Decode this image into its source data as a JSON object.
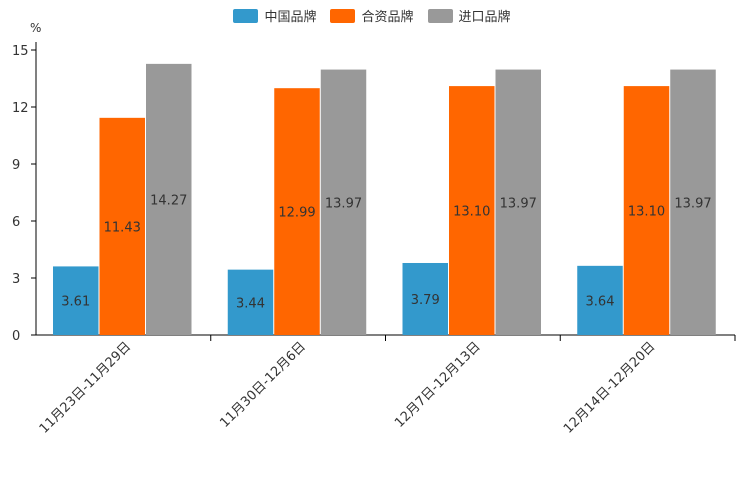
{
  "chart_data": {
    "type": "bar",
    "title": "",
    "ylabel": "%",
    "xlabel": "",
    "ylim": [
      0,
      15
    ],
    "yticks": [
      0,
      3,
      6,
      9,
      12,
      15
    ],
    "categories": [
      "11月23日-11月29日",
      "11月30日-12月6日",
      "12月7日-12月13日",
      "12月14日-12月20日"
    ],
    "series": [
      {
        "name": "中国品牌",
        "color": "#3399cc",
        "values": [
          3.61,
          3.44,
          3.79,
          3.64
        ]
      },
      {
        "name": "合资品牌",
        "color": "#ff6600",
        "values": [
          11.43,
          12.99,
          13.1,
          13.1
        ]
      },
      {
        "name": "进口品牌",
        "color": "#999999",
        "values": [
          14.27,
          13.97,
          13.97,
          13.97
        ]
      }
    ]
  }
}
